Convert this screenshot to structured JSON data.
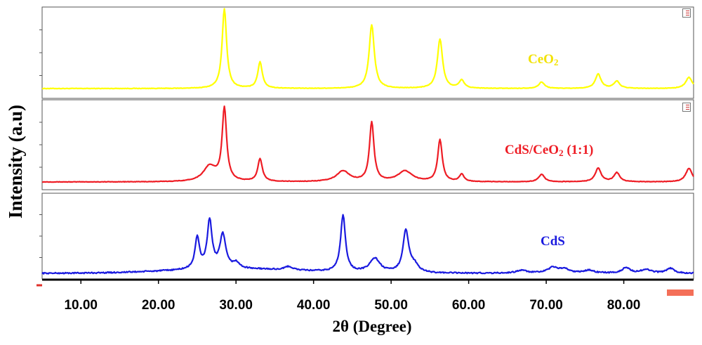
{
  "chart_data": {
    "type": "line",
    "title": "",
    "xlabel": "2θ (Degree)",
    "ylabel": "Intensity (a.u)",
    "xlim": [
      5,
      89
    ],
    "x_ticks": [
      "10.00",
      "20.00",
      "30.00",
      "40.00",
      "50.00",
      "60.00",
      "70.00",
      "80.00"
    ],
    "x_tick_values": [
      10,
      20,
      30,
      40,
      50,
      60,
      70,
      80
    ],
    "panels": 3,
    "series": [
      {
        "name": "CeO2",
        "label_main": "CeO",
        "label_sub": "2",
        "label_suffix": "",
        "color": "#ffff00",
        "baseline": 0.0,
        "peaks": [
          {
            "x": 28.5,
            "h": 1.0,
            "w": 0.35
          },
          {
            "x": 33.1,
            "h": 0.33,
            "w": 0.35
          },
          {
            "x": 47.5,
            "h": 0.8,
            "w": 0.4
          },
          {
            "x": 56.3,
            "h": 0.62,
            "w": 0.4
          },
          {
            "x": 59.1,
            "h": 0.1,
            "w": 0.4
          },
          {
            "x": 69.4,
            "h": 0.08,
            "w": 0.45
          },
          {
            "x": 76.7,
            "h": 0.18,
            "w": 0.45
          },
          {
            "x": 79.1,
            "h": 0.09,
            "w": 0.45
          },
          {
            "x": 88.4,
            "h": 0.14,
            "w": 0.5
          }
        ]
      },
      {
        "name": "CdS/CeO2 (1:1)",
        "label_main": "CdS/CeO",
        "label_sub": "2",
        "label_suffix": " (1:1)",
        "color": "#ee1c24",
        "baseline": 0.0,
        "peaks": [
          {
            "x": 26.6,
            "h": 0.2,
            "w": 1.0
          },
          {
            "x": 28.5,
            "h": 0.95,
            "w": 0.35
          },
          {
            "x": 33.1,
            "h": 0.3,
            "w": 0.35
          },
          {
            "x": 43.8,
            "h": 0.14,
            "w": 1.0
          },
          {
            "x": 47.5,
            "h": 0.78,
            "w": 0.35
          },
          {
            "x": 51.8,
            "h": 0.14,
            "w": 1.1
          },
          {
            "x": 56.3,
            "h": 0.55,
            "w": 0.35
          },
          {
            "x": 59.1,
            "h": 0.1,
            "w": 0.35
          },
          {
            "x": 69.4,
            "h": 0.1,
            "w": 0.45
          },
          {
            "x": 76.7,
            "h": 0.18,
            "w": 0.45
          },
          {
            "x": 79.1,
            "h": 0.12,
            "w": 0.45
          },
          {
            "x": 88.4,
            "h": 0.18,
            "w": 0.5
          }
        ]
      },
      {
        "name": "CdS",
        "label_main": "CdS",
        "label_sub": "",
        "label_suffix": "",
        "color": "#1a1adf",
        "baseline": 0.03,
        "peaks": [
          {
            "x": 25.0,
            "h": 0.44,
            "w": 0.35
          },
          {
            "x": 26.6,
            "h": 0.68,
            "w": 0.38
          },
          {
            "x": 28.3,
            "h": 0.48,
            "w": 0.45
          },
          {
            "x": 30.0,
            "h": 0.08,
            "w": 0.5
          },
          {
            "x": 36.8,
            "h": 0.05,
            "w": 0.6
          },
          {
            "x": 43.8,
            "h": 0.8,
            "w": 0.38
          },
          {
            "x": 47.9,
            "h": 0.2,
            "w": 0.8
          },
          {
            "x": 51.9,
            "h": 0.6,
            "w": 0.45
          },
          {
            "x": 53.0,
            "h": 0.1,
            "w": 0.6
          },
          {
            "x": 66.8,
            "h": 0.04,
            "w": 0.8
          },
          {
            "x": 70.9,
            "h": 0.08,
            "w": 0.8
          },
          {
            "x": 72.4,
            "h": 0.05,
            "w": 0.8
          },
          {
            "x": 75.5,
            "h": 0.04,
            "w": 0.8
          },
          {
            "x": 80.3,
            "h": 0.08,
            "w": 0.6
          },
          {
            "x": 82.9,
            "h": 0.05,
            "w": 0.8
          },
          {
            "x": 86.0,
            "h": 0.07,
            "w": 0.6
          }
        ]
      }
    ]
  }
}
